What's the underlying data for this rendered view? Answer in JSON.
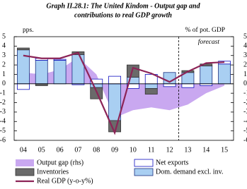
{
  "chart_data": {
    "type": "bar",
    "title": "Graph II.28.1: The United Kindom - Output gap and",
    "subtitle": "contributions to real GDP growth",
    "annotations": [
      "pps.",
      "% of pot. GDP",
      "forecast"
    ],
    "categories": [
      "04",
      "05",
      "06",
      "07",
      "08",
      "09",
      "10",
      "11",
      "12",
      "13",
      "14",
      "15"
    ],
    "ylim": [
      -6,
      5
    ],
    "yticks": [
      -6,
      -5,
      -4,
      -3,
      -2,
      -1,
      0,
      1,
      2,
      3,
      4,
      5
    ],
    "y2lim": [
      -6,
      5
    ],
    "y2ticks": [
      -6,
      -5,
      -4,
      -3,
      -2,
      -1,
      0,
      1,
      2,
      3,
      4,
      5
    ],
    "series": [
      {
        "name": "Output gap (rhs)",
        "type": "area",
        "axis": "y2",
        "color": "#c9a8f0",
        "values": [
          1.2,
          1.0,
          1.5,
          2.8,
          1.0,
          -3.6,
          -2.8,
          -2.5,
          -2.8,
          -2.2,
          -1.0,
          -0.2
        ]
      },
      {
        "name": "Net exports",
        "type": "bar",
        "color": "#ffffff",
        "stroke": "#1010c0",
        "values": [
          -0.6,
          0.2,
          0.1,
          -0.1,
          0.5,
          0.8,
          -0.5,
          1.0,
          -0.3,
          -0.4,
          -0.2,
          0.3
        ]
      },
      {
        "name": "Inventories",
        "type": "bar",
        "color": "#6a6a6a",
        "stroke": "#333333",
        "values": [
          0.2,
          -0.2,
          0.0,
          0.3,
          -1.2,
          -1.2,
          1.3,
          -0.6,
          0.0,
          0.2,
          0.2,
          0.0
        ]
      },
      {
        "name": "Dom. demand excl. inv.",
        "type": "bar",
        "color": "#a9cff2",
        "stroke": "#1a2f80",
        "values": [
          3.6,
          2.5,
          2.5,
          3.1,
          -0.4,
          -3.9,
          0.7,
          -0.5,
          1.2,
          1.2,
          1.9,
          2.1
        ]
      },
      {
        "name": "Real GDP (y-o-y%)",
        "type": "line",
        "color": "#8c2457",
        "values": [
          3.0,
          2.7,
          2.7,
          3.3,
          -0.8,
          -5.2,
          1.7,
          1.1,
          0.2,
          1.3,
          2.2,
          2.3
        ]
      }
    ]
  }
}
